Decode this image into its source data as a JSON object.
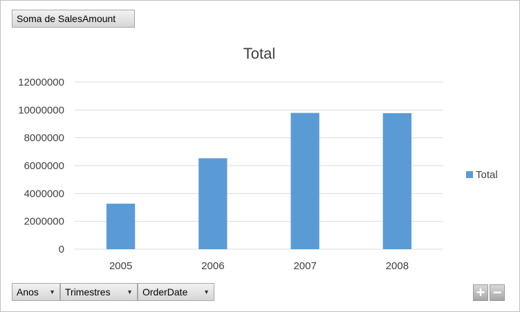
{
  "field_buttons": {
    "values": "Soma de SalesAmount",
    "axis": [
      "Anos",
      "Trimestres",
      "OrderDate"
    ]
  },
  "zoom": {
    "plus": "+",
    "minus": "−"
  },
  "chart_data": {
    "type": "bar",
    "title": "Total",
    "categories": [
      "2005",
      "2006",
      "2007",
      "2008"
    ],
    "series": [
      {
        "name": "Total",
        "values": [
          3270000,
          6530000,
          9790000,
          9770000
        ],
        "color": "#5b9bd5"
      }
    ],
    "ylim": [
      0,
      12000000
    ],
    "yticks": [
      0,
      2000000,
      4000000,
      6000000,
      8000000,
      10000000,
      12000000
    ],
    "ytick_labels": [
      "0",
      "2000000",
      "4000000",
      "6000000",
      "8000000",
      "10000000",
      "12000000"
    ],
    "grid": true,
    "legend": "right",
    "xlabel": "",
    "ylabel": ""
  }
}
